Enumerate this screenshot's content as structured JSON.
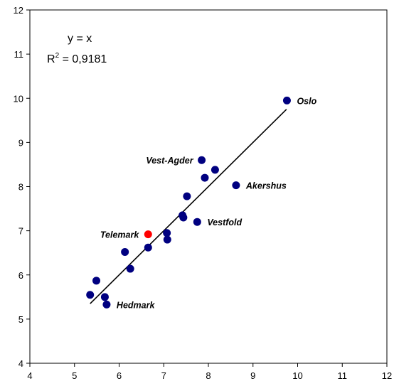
{
  "chart_data": {
    "type": "scatter",
    "title": "",
    "xlabel": "",
    "ylabel": "",
    "xlim": [
      4,
      12
    ],
    "ylim": [
      4,
      12
    ],
    "xticks": [
      "4",
      "5",
      "6",
      "7",
      "8",
      "9",
      "10",
      "11",
      "12"
    ],
    "yticks": [
      "4",
      "5",
      "6",
      "7",
      "8",
      "9",
      "10",
      "11",
      "12"
    ],
    "grid": false,
    "legend": "none",
    "trendline": {
      "equation": "y = x",
      "r2_prefix": "R",
      "r2_sup": "2",
      "r2_value": " = 0,9181",
      "x_start": 5.35,
      "x_end": 9.75
    },
    "marker_color": "#000080",
    "highlight_color": "#ff0000",
    "points": [
      {
        "x": 9.76,
        "y": 9.95,
        "label": "Oslo"
      },
      {
        "x": 7.85,
        "y": 8.6,
        "label": "Vest-Agder"
      },
      {
        "x": 8.62,
        "y": 8.03,
        "label": "Akershus"
      },
      {
        "x": 7.75,
        "y": 7.2,
        "label": "Vestfold"
      },
      {
        "x": 6.65,
        "y": 6.92,
        "label": "Telemark",
        "highlight": true
      },
      {
        "x": 5.72,
        "y": 5.33,
        "label": "Hedmark"
      },
      {
        "x": 8.15,
        "y": 8.38,
        "label": ""
      },
      {
        "x": 7.92,
        "y": 8.2,
        "label": ""
      },
      {
        "x": 7.52,
        "y": 7.78,
        "label": ""
      },
      {
        "x": 7.42,
        "y": 7.35,
        "label": ""
      },
      {
        "x": 7.44,
        "y": 7.3,
        "label": ""
      },
      {
        "x": 7.07,
        "y": 6.95,
        "label": ""
      },
      {
        "x": 7.08,
        "y": 6.8,
        "label": ""
      },
      {
        "x": 6.65,
        "y": 6.62,
        "label": ""
      },
      {
        "x": 6.13,
        "y": 6.52,
        "label": ""
      },
      {
        "x": 6.25,
        "y": 6.14,
        "label": ""
      },
      {
        "x": 5.49,
        "y": 5.87,
        "label": ""
      },
      {
        "x": 5.35,
        "y": 5.55,
        "label": ""
      },
      {
        "x": 5.68,
        "y": 5.5,
        "label": ""
      }
    ]
  }
}
